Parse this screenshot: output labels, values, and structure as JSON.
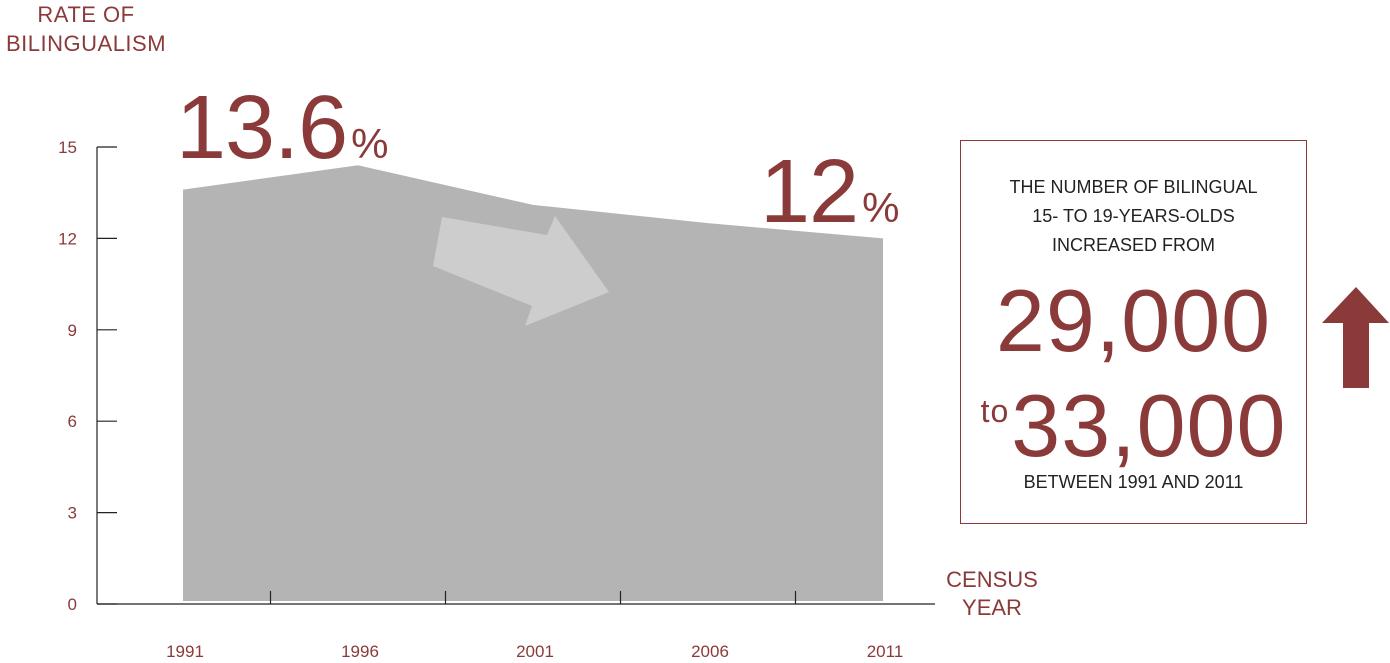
{
  "chart_data": {
    "type": "area",
    "x": [
      1991,
      1996,
      2001,
      2006,
      2011
    ],
    "values": [
      13.6,
      14.4,
      13.1,
      12.5,
      12.0
    ],
    "ylabel_lines": [
      "RATE OF",
      "BILINGUALISM"
    ],
    "xlabel_lines": [
      "CENSUS",
      "YEAR"
    ],
    "yticks": [
      0,
      3,
      6,
      9,
      12,
      15
    ],
    "ylim": [
      0,
      15
    ],
    "xticks": [
      "1991",
      "1996",
      "2001",
      "2006",
      "2011"
    ],
    "annotations": {
      "start": {
        "value": "13.6",
        "unit": "%"
      },
      "end": {
        "value": "12",
        "unit": "%"
      }
    },
    "trend_direction": "down",
    "grid": false
  },
  "callout": {
    "lines_top": [
      "THE NUMBER OF BILINGUAL",
      "15- TO 19-YEARS-OLDS",
      "INCREASED FROM"
    ],
    "from_value": "29,000",
    "to_word": "to",
    "to_value": "33,000",
    "bottom": "BETWEEN 1991 AND 2011",
    "trend_direction": "up"
  },
  "colors": {
    "accent": "#8b3a3a",
    "area": "#b4b4b4",
    "trend_arrow": "#cdcdcd",
    "axis": "#222222",
    "text": "#222222"
  }
}
